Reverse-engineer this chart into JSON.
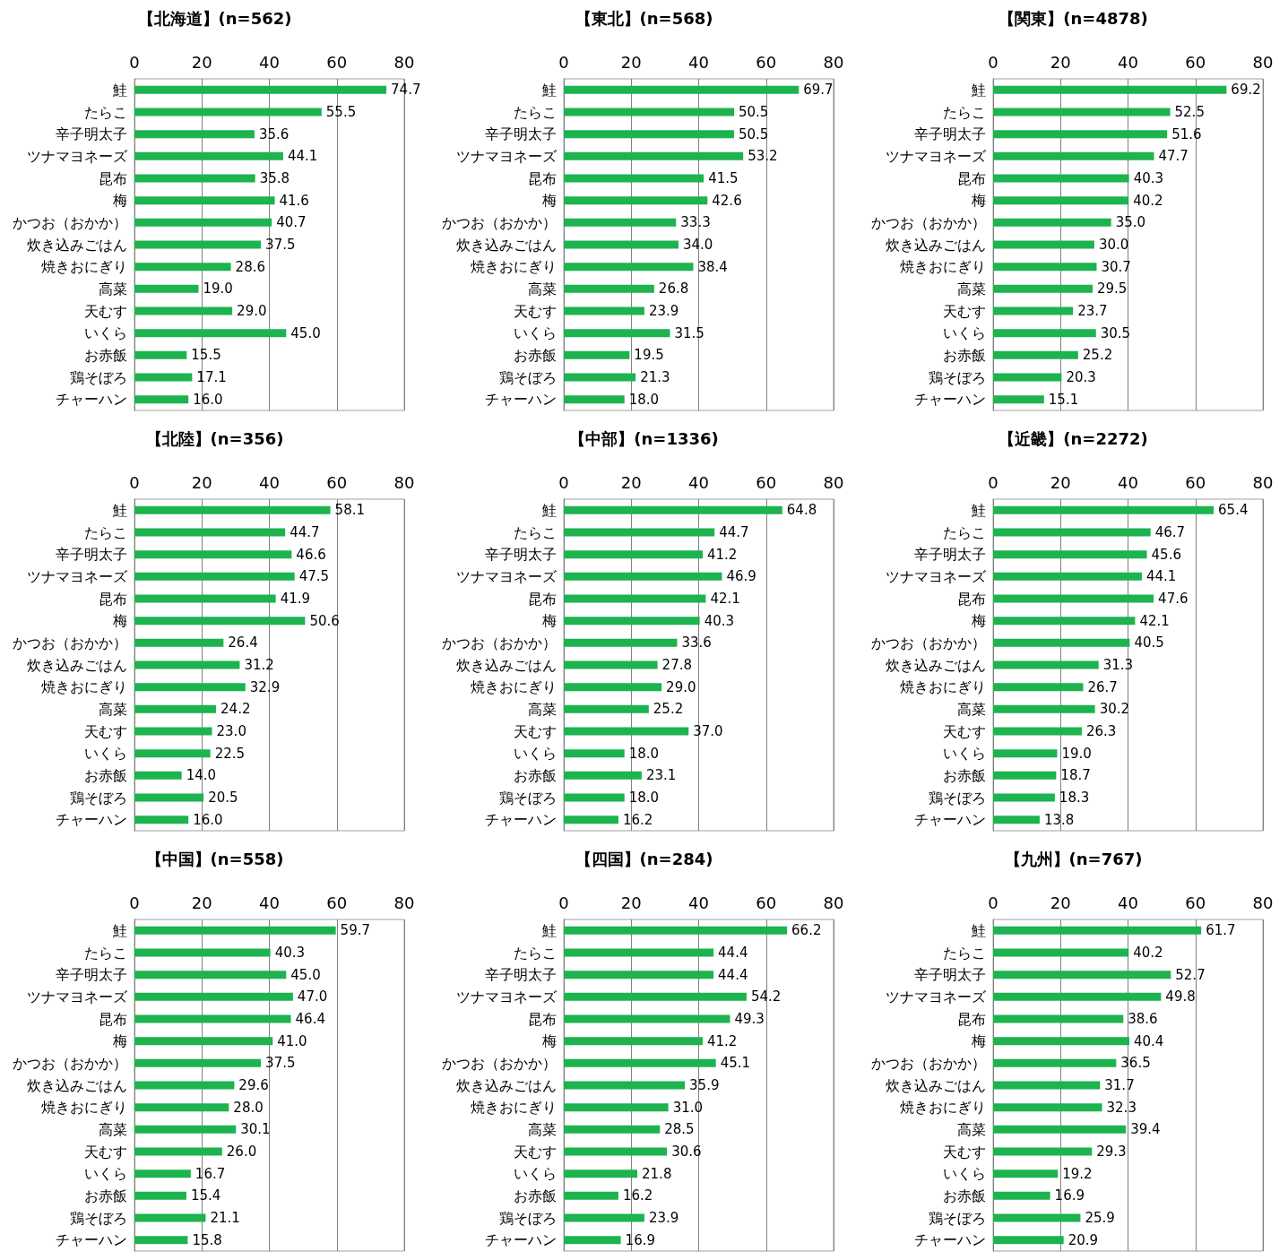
{
  "chart_data": [
    {
      "type": "bar",
      "orientation": "horizontal",
      "title": "【北海道】(n=562)",
      "categories": [
        "鮭",
        "たらこ",
        "辛子明太子",
        "ツナマヨネーズ",
        "昆布",
        "梅",
        "かつお（おかか）",
        "炊き込みごはん",
        "焼きおにぎり",
        "高菜",
        "天むす",
        "いくら",
        "お赤飯",
        "鶏そぼろ",
        "チャーハン"
      ],
      "values": [
        74.7,
        55.5,
        35.6,
        44.1,
        35.8,
        41.6,
        40.7,
        37.5,
        28.6,
        19.0,
        29.0,
        45.0,
        15.5,
        17.1,
        16.0
      ],
      "value_labels": [
        "74.7",
        "55.5",
        "35.6",
        "44.1",
        "35.8",
        "41.6",
        "40.7",
        "37.5",
        "28.6",
        "19.0",
        "29.0",
        "45.0",
        "15.5",
        "17.1",
        "16.0"
      ],
      "color": "#1db34f",
      "xlim": [
        0,
        80
      ],
      "xticks": [
        0,
        20,
        40,
        60,
        80
      ],
      "grid": "x"
    },
    {
      "type": "bar",
      "orientation": "horizontal",
      "title": "【東北】(n=568)",
      "categories": [
        "鮭",
        "たらこ",
        "辛子明太子",
        "ツナマヨネーズ",
        "昆布",
        "梅",
        "かつお（おかか）",
        "炊き込みごはん",
        "焼きおにぎり",
        "高菜",
        "天むす",
        "いくら",
        "お赤飯",
        "鶏そぼろ",
        "チャーハン"
      ],
      "values": [
        69.7,
        50.5,
        50.5,
        53.2,
        41.5,
        42.6,
        33.3,
        34.0,
        38.4,
        26.8,
        23.9,
        31.5,
        19.5,
        21.3,
        18.0
      ],
      "value_labels": [
        "69.7",
        "50.5",
        "50.5",
        "53.2",
        "41.5",
        "42.6",
        "33.3",
        "34.0",
        "38.4",
        "26.8",
        "23.9",
        "31.5",
        "19.5",
        "21.3",
        "18.0"
      ],
      "color": "#1db34f",
      "xlim": [
        0,
        80
      ],
      "xticks": [
        0,
        20,
        40,
        60,
        80
      ],
      "grid": "x"
    },
    {
      "type": "bar",
      "orientation": "horizontal",
      "title": "【関東】(n=4878)",
      "categories": [
        "鮭",
        "たらこ",
        "辛子明太子",
        "ツナマヨネーズ",
        "昆布",
        "梅",
        "かつお（おかか）",
        "炊き込みごはん",
        "焼きおにぎり",
        "高菜",
        "天むす",
        "いくら",
        "お赤飯",
        "鶏そぼろ",
        "チャーハン"
      ],
      "values": [
        69.2,
        52.5,
        51.6,
        47.7,
        40.3,
        40.2,
        35.0,
        30.0,
        30.7,
        29.5,
        23.7,
        30.5,
        25.2,
        20.3,
        15.1
      ],
      "value_labels": [
        "69.2",
        "52.5",
        "51.6",
        "47.7",
        "40.3",
        "40.2",
        "35.0",
        "30.0",
        "30.7",
        "29.5",
        "23.7",
        "30.5",
        "25.2",
        "20.3",
        "15.1"
      ],
      "color": "#1db34f",
      "xlim": [
        0,
        80
      ],
      "xticks": [
        0,
        20,
        40,
        60,
        80
      ],
      "grid": "x"
    },
    {
      "type": "bar",
      "orientation": "horizontal",
      "title": "【北陸】(n=356)",
      "categories": [
        "鮭",
        "たらこ",
        "辛子明太子",
        "ツナマヨネーズ",
        "昆布",
        "梅",
        "かつお（おかか）",
        "炊き込みごはん",
        "焼きおにぎり",
        "高菜",
        "天むす",
        "いくら",
        "お赤飯",
        "鶏そぼろ",
        "チャーハン"
      ],
      "values": [
        58.1,
        44.7,
        46.6,
        47.5,
        41.9,
        50.6,
        26.4,
        31.2,
        32.9,
        24.2,
        23.0,
        22.5,
        14.0,
        20.5,
        16.0
      ],
      "value_labels": [
        "58.1",
        "44.7",
        "46.6",
        "47.5",
        "41.9",
        "50.6",
        "26.4",
        "31.2",
        "32.9",
        "24.2",
        "23.0",
        "22.5",
        "14.0",
        "20.5",
        "16.0"
      ],
      "color": "#1db34f",
      "xlim": [
        0,
        80
      ],
      "xticks": [
        0,
        20,
        40,
        60,
        80
      ],
      "grid": "x"
    },
    {
      "type": "bar",
      "orientation": "horizontal",
      "title": "【中部】(n=1336)",
      "categories": [
        "鮭",
        "たらこ",
        "辛子明太子",
        "ツナマヨネーズ",
        "昆布",
        "梅",
        "かつお（おかか）",
        "炊き込みごはん",
        "焼きおにぎり",
        "高菜",
        "天むす",
        "いくら",
        "お赤飯",
        "鶏そぼろ",
        "チャーハン"
      ],
      "values": [
        64.8,
        44.7,
        41.2,
        46.9,
        42.1,
        40.3,
        33.6,
        27.8,
        29.0,
        25.2,
        37.0,
        18.0,
        23.1,
        18.0,
        16.2
      ],
      "value_labels": [
        "64.8",
        "44.7",
        "41.2",
        "46.9",
        "42.1",
        "40.3",
        "33.6",
        "27.8",
        "29.0",
        "25.2",
        "37.0",
        "18.0",
        "23.1",
        "18.0",
        "16.2"
      ],
      "color": "#1db34f",
      "xlim": [
        0,
        80
      ],
      "xticks": [
        0,
        20,
        40,
        60,
        80
      ],
      "grid": "x"
    },
    {
      "type": "bar",
      "orientation": "horizontal",
      "title": "【近畿】(n=2272)",
      "categories": [
        "鮭",
        "たらこ",
        "辛子明太子",
        "ツナマヨネーズ",
        "昆布",
        "梅",
        "かつお（おかか）",
        "炊き込みごはん",
        "焼きおにぎり",
        "高菜",
        "天むす",
        "いくら",
        "お赤飯",
        "鶏そぼろ",
        "チャーハン"
      ],
      "values": [
        65.4,
        46.7,
        45.6,
        44.1,
        47.6,
        42.1,
        40.5,
        31.3,
        26.7,
        30.2,
        26.3,
        19.0,
        18.7,
        18.3,
        13.8
      ],
      "value_labels": [
        "65.4",
        "46.7",
        "45.6",
        "44.1",
        "47.6",
        "42.1",
        "40.5",
        "31.3",
        "26.7",
        "30.2",
        "26.3",
        "19.0",
        "18.7",
        "18.3",
        "13.8"
      ],
      "color": "#1db34f",
      "xlim": [
        0,
        80
      ],
      "xticks": [
        0,
        20,
        40,
        60,
        80
      ],
      "grid": "x"
    },
    {
      "type": "bar",
      "orientation": "horizontal",
      "title": "【中国】(n=558)",
      "categories": [
        "鮭",
        "たらこ",
        "辛子明太子",
        "ツナマヨネーズ",
        "昆布",
        "梅",
        "かつお（おかか）",
        "炊き込みごはん",
        "焼きおにぎり",
        "高菜",
        "天むす",
        "いくら",
        "お赤飯",
        "鶏そぼろ",
        "チャーハン"
      ],
      "values": [
        59.7,
        40.3,
        45.0,
        47.0,
        46.4,
        41.0,
        37.5,
        29.6,
        28.0,
        30.1,
        26.0,
        16.7,
        15.4,
        21.1,
        15.8
      ],
      "value_labels": [
        "59.7",
        "40.3",
        "45.0",
        "47.0",
        "46.4",
        "41.0",
        "37.5",
        "29.6",
        "28.0",
        "30.1",
        "26.0",
        "16.7",
        "15.4",
        "21.1",
        "15.8"
      ],
      "color": "#1db34f",
      "xlim": [
        0,
        80
      ],
      "xticks": [
        0,
        20,
        40,
        60,
        80
      ],
      "grid": "x"
    },
    {
      "type": "bar",
      "orientation": "horizontal",
      "title": "【四国】(n=284)",
      "categories": [
        "鮭",
        "たらこ",
        "辛子明太子",
        "ツナマヨネーズ",
        "昆布",
        "梅",
        "かつお（おかか）",
        "炊き込みごはん",
        "焼きおにぎり",
        "高菜",
        "天むす",
        "いくら",
        "お赤飯",
        "鶏そぼろ",
        "チャーハン"
      ],
      "values": [
        66.2,
        44.4,
        44.4,
        54.2,
        49.3,
        41.2,
        45.1,
        35.9,
        31.0,
        28.5,
        30.6,
        21.8,
        16.2,
        23.9,
        16.9
      ],
      "value_labels": [
        "66.2",
        "44.4",
        "44.4",
        "54.2",
        "49.3",
        "41.2",
        "45.1",
        "35.9",
        "31.0",
        "28.5",
        "30.6",
        "21.8",
        "16.2",
        "23.9",
        "16.9"
      ],
      "color": "#1db34f",
      "xlim": [
        0,
        80
      ],
      "xticks": [
        0,
        20,
        40,
        60,
        80
      ],
      "grid": "x"
    },
    {
      "type": "bar",
      "orientation": "horizontal",
      "title": "【九州】(n=767)",
      "categories": [
        "鮭",
        "たらこ",
        "辛子明太子",
        "ツナマヨネーズ",
        "昆布",
        "梅",
        "かつお（おかか）",
        "炊き込みごはん",
        "焼きおにぎり",
        "高菜",
        "天むす",
        "いくら",
        "お赤飯",
        "鶏そぼろ",
        "チャーハン"
      ],
      "values": [
        61.7,
        40.2,
        52.7,
        49.8,
        38.6,
        40.4,
        36.5,
        31.7,
        32.3,
        39.4,
        29.3,
        19.2,
        16.9,
        25.9,
        20.9
      ],
      "value_labels": [
        "61.7",
        "40.2",
        "52.7",
        "49.8",
        "38.6",
        "40.4",
        "36.5",
        "31.7",
        "32.3",
        "39.4",
        "29.3",
        "19.2",
        "16.9",
        "25.9",
        "20.9"
      ],
      "color": "#1db34f",
      "xlim": [
        0,
        80
      ],
      "xticks": [
        0,
        20,
        40,
        60,
        80
      ],
      "grid": "x"
    }
  ]
}
